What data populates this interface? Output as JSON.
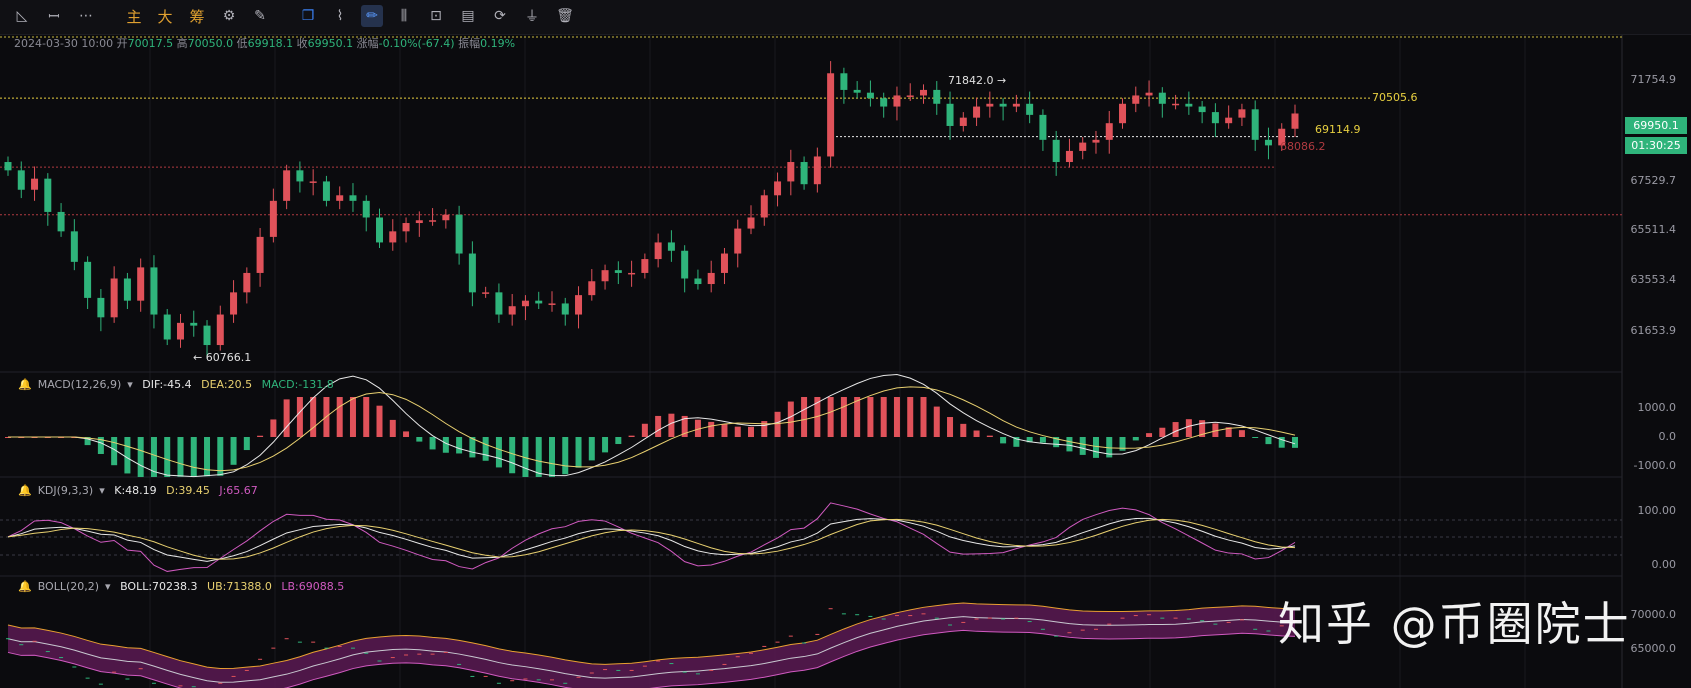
{
  "toolbar": {
    "items": [
      {
        "name": "trend-line-tool-icon",
        "glyph": "◺"
      },
      {
        "name": "bar-pattern-tool-icon",
        "glyph": "ꟷ"
      },
      {
        "name": "more-tools-icon",
        "glyph": "⋯"
      },
      {
        "name": "main-label",
        "glyph": "主",
        "cn": true
      },
      {
        "name": "big-label",
        "glyph": "大",
        "cn": true
      },
      {
        "name": "chip-label",
        "glyph": "筹",
        "cn": true
      },
      {
        "name": "settings-icon",
        "glyph": "⚙"
      },
      {
        "name": "edit-icon",
        "glyph": "✎"
      },
      {
        "name": "copy-icon",
        "glyph": "❐",
        "blue": true
      },
      {
        "name": "ruler-icon",
        "glyph": "⌇"
      },
      {
        "name": "draw-pen-icon",
        "glyph": "✏",
        "active": true
      },
      {
        "name": "candle-type-icon",
        "glyph": "⫼"
      },
      {
        "name": "lock-icon",
        "glyph": "⊡"
      },
      {
        "name": "template-icon",
        "glyph": "▤"
      },
      {
        "name": "magnet-icon",
        "glyph": "⟳"
      },
      {
        "name": "filter-icon",
        "glyph": "⏚"
      },
      {
        "name": "delete-icon",
        "glyph": "🗑"
      }
    ]
  },
  "ohlc": {
    "date": "2024-03-30 10:00",
    "open_label": "开",
    "open": "70017.5",
    "high_label": "高",
    "high": "70050.0",
    "low_label": "低",
    "low": "69918.1",
    "close_label": "收",
    "close": "69950.1",
    "change_label": "涨幅",
    "change": "-0.10%(-67.4)",
    "amp_label": "振幅",
    "amp": "0.19%"
  },
  "price_axis": {
    "ticks": [
      "71754.9",
      "69950.1",
      "67529.7",
      "65511.4",
      "63553.4",
      "61653.9"
    ],
    "current_price": "69950.1",
    "countdown": "01:30:25"
  },
  "annotations": {
    "high_marker": "71842.0 →",
    "low_marker": "← 60766.1",
    "line_label_upper": "70505.6",
    "line_label_mid": "69114.9",
    "line_label_low": "68086.2"
  },
  "macd": {
    "name": "MACD(12,26,9)",
    "dif": "DIF:-45.4",
    "dea": "DEA:20.5",
    "macd": "MACD:-131.8",
    "ticks": [
      "1000.0",
      "0.0",
      "-1000.0"
    ]
  },
  "kdj": {
    "name": "KDJ(9,3,3)",
    "k": "K:48.19",
    "d": "D:39.45",
    "j": "J:65.67",
    "ticks": [
      "100.00",
      "0.00"
    ]
  },
  "boll": {
    "name": "BOLL(20,2)",
    "boll": "BOLL:70238.3",
    "ub": "UB:71388.0",
    "lb": "LB:69088.5",
    "ticks": [
      "70000.0",
      "65000.0"
    ]
  },
  "watermark": "知乎 @币圈院士",
  "colors": {
    "up": "#e0525a",
    "down": "#2fb47b",
    "dif": "#e8e8e8",
    "dea": "#e8d070",
    "k": "#e8e8e8",
    "d": "#e8d070",
    "j": "#d05ac0",
    "boll_band": "#5a1a52",
    "ub": "#e8a030",
    "lb": "#d05ac0"
  },
  "chart_data": {
    "type": "candlestick",
    "title": "",
    "closes": [
      67900,
      67200,
      67600,
      66400,
      65700,
      64600,
      63300,
      62600,
      64000,
      63200,
      64400,
      62700,
      61800,
      62400,
      62300,
      61600,
      62700,
      63500,
      64200,
      65500,
      66800,
      67900,
      67500,
      67500,
      66800,
      67000,
      66800,
      66200,
      65300,
      65700,
      66000,
      66100,
      66100,
      66300,
      64900,
      63500,
      63500,
      62700,
      63000,
      63200,
      63100,
      63100,
      62700,
      63400,
      63900,
      64300,
      64200,
      64200,
      64700,
      65300,
      65000,
      64000,
      63800,
      64200,
      64900,
      65800,
      66200,
      67000,
      67500,
      68200,
      67400,
      68400,
      71400,
      70800,
      70700,
      70500,
      70200,
      70600,
      70600,
      70800,
      70300,
      69500,
      69800,
      70200,
      70300,
      70200,
      70300,
      69900,
      69000,
      68200,
      68600,
      68900,
      69000,
      69600,
      70300,
      70600,
      70700,
      70300,
      70300,
      70200,
      70000,
      69600,
      69800,
      70100,
      69000,
      68800,
      69400,
      69950
    ],
    "price_range": [
      60766.1,
      71842.0
    ],
    "y_ticks": [
      71754.9,
      69950.1,
      67529.7,
      65511.4,
      63553.4,
      61653.9
    ],
    "high_point": 71842.0,
    "low_point": 60766.1,
    "horizontal_lines": [
      70505.6,
      69114.9,
      68086.2
    ]
  }
}
